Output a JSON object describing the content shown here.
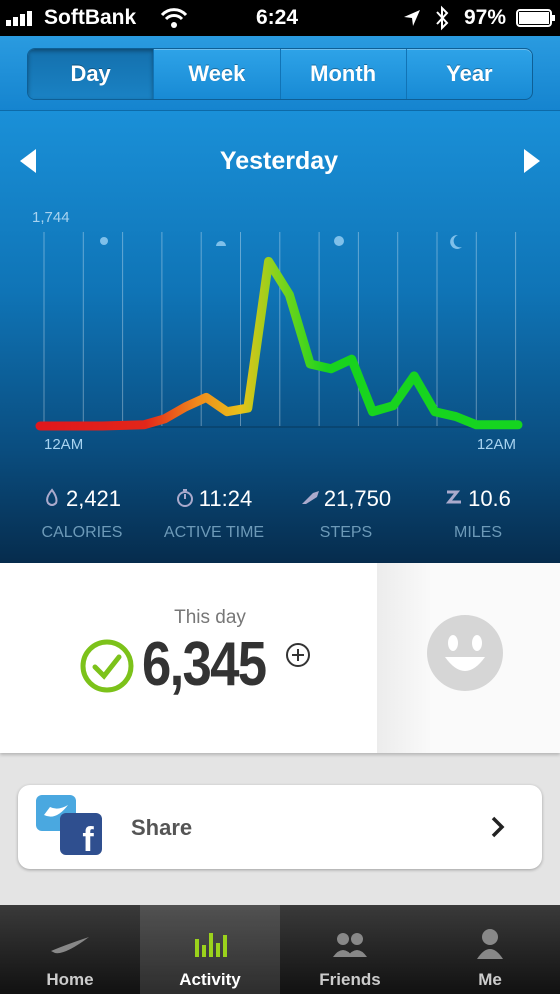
{
  "status_bar": {
    "carrier": "SoftBank",
    "time": "6:24",
    "battery": "97%"
  },
  "tabs": {
    "items": [
      "Day",
      "Week",
      "Month",
      "Year"
    ],
    "selected": 0
  },
  "day_nav": {
    "title": "Yesterday"
  },
  "activity_chart": {
    "ylim": [
      0,
      1744
    ],
    "max_tick": {
      "value": 1744,
      "label": "1,744"
    },
    "x_start_label": "12AM",
    "x_end_label": "12AM",
    "values": [
      0,
      0,
      0,
      0,
      5,
      10,
      60,
      160,
      240,
      120,
      150,
      1380,
      1100,
      520,
      480,
      560,
      120,
      170,
      420,
      120,
      80,
      10,
      10,
      10
    ]
  },
  "stats": [
    {
      "value": "2,421",
      "label": "CALORIES"
    },
    {
      "value": "11:24",
      "label": "ACTIVE TIME"
    },
    {
      "value": "21,750",
      "label": "STEPS"
    },
    {
      "value": "10.6",
      "label": "MILES"
    }
  ],
  "summary": {
    "caption": "This day",
    "value": "6,345"
  },
  "share": {
    "label": "Share"
  },
  "tab_bar": {
    "items": [
      "Home",
      "Activity",
      "Friends",
      "Me"
    ],
    "selected": 1
  }
}
